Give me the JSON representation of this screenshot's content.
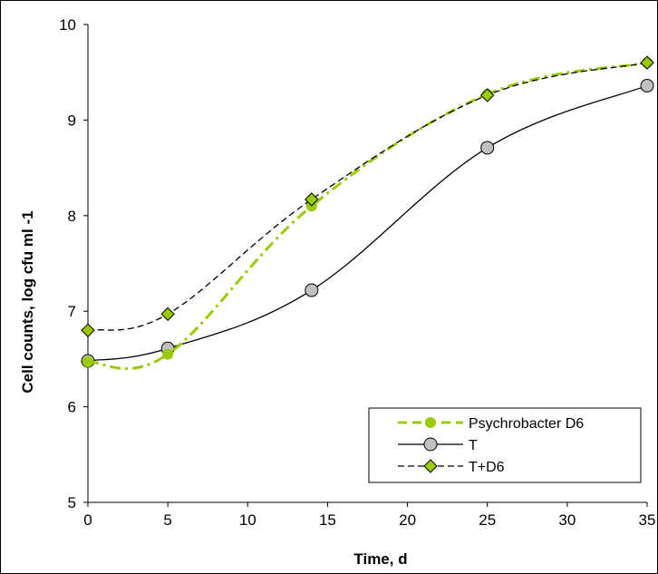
{
  "chart_data": {
    "type": "line",
    "xlabel": "Time, d",
    "ylabel": "Cell counts, log cfu ml -1",
    "xlim": [
      0,
      35
    ],
    "ylim": [
      5,
      10
    ],
    "xticks": [
      "0",
      "5",
      "10",
      "15",
      "20",
      "25",
      "30",
      "35"
    ],
    "yticks": [
      "5",
      "6",
      "7",
      "8",
      "9",
      "10"
    ],
    "grid": false,
    "legend_position": "bottom-right",
    "series": [
      {
        "name": "Psychrobacter D6",
        "x": [
          0,
          5,
          14,
          25,
          35
        ],
        "values": [
          6.47,
          6.55,
          8.1,
          9.27,
          9.6
        ],
        "color": "#99cc00",
        "line": "dash-dot",
        "marker": "circle"
      },
      {
        "name": "T",
        "x": [
          0,
          5,
          14,
          25,
          35
        ],
        "values": [
          6.48,
          6.61,
          7.22,
          8.71,
          9.36
        ],
        "color": "#000000",
        "marker_color": "#c0c0c0",
        "line": "solid",
        "marker": "circle"
      },
      {
        "name": "T+D6",
        "x": [
          0,
          5,
          14,
          25,
          35
        ],
        "values": [
          6.8,
          6.97,
          8.17,
          9.26,
          9.6
        ],
        "color": "#000000",
        "marker_color": "#99cc00",
        "line": "dashed",
        "marker": "diamond"
      }
    ]
  }
}
